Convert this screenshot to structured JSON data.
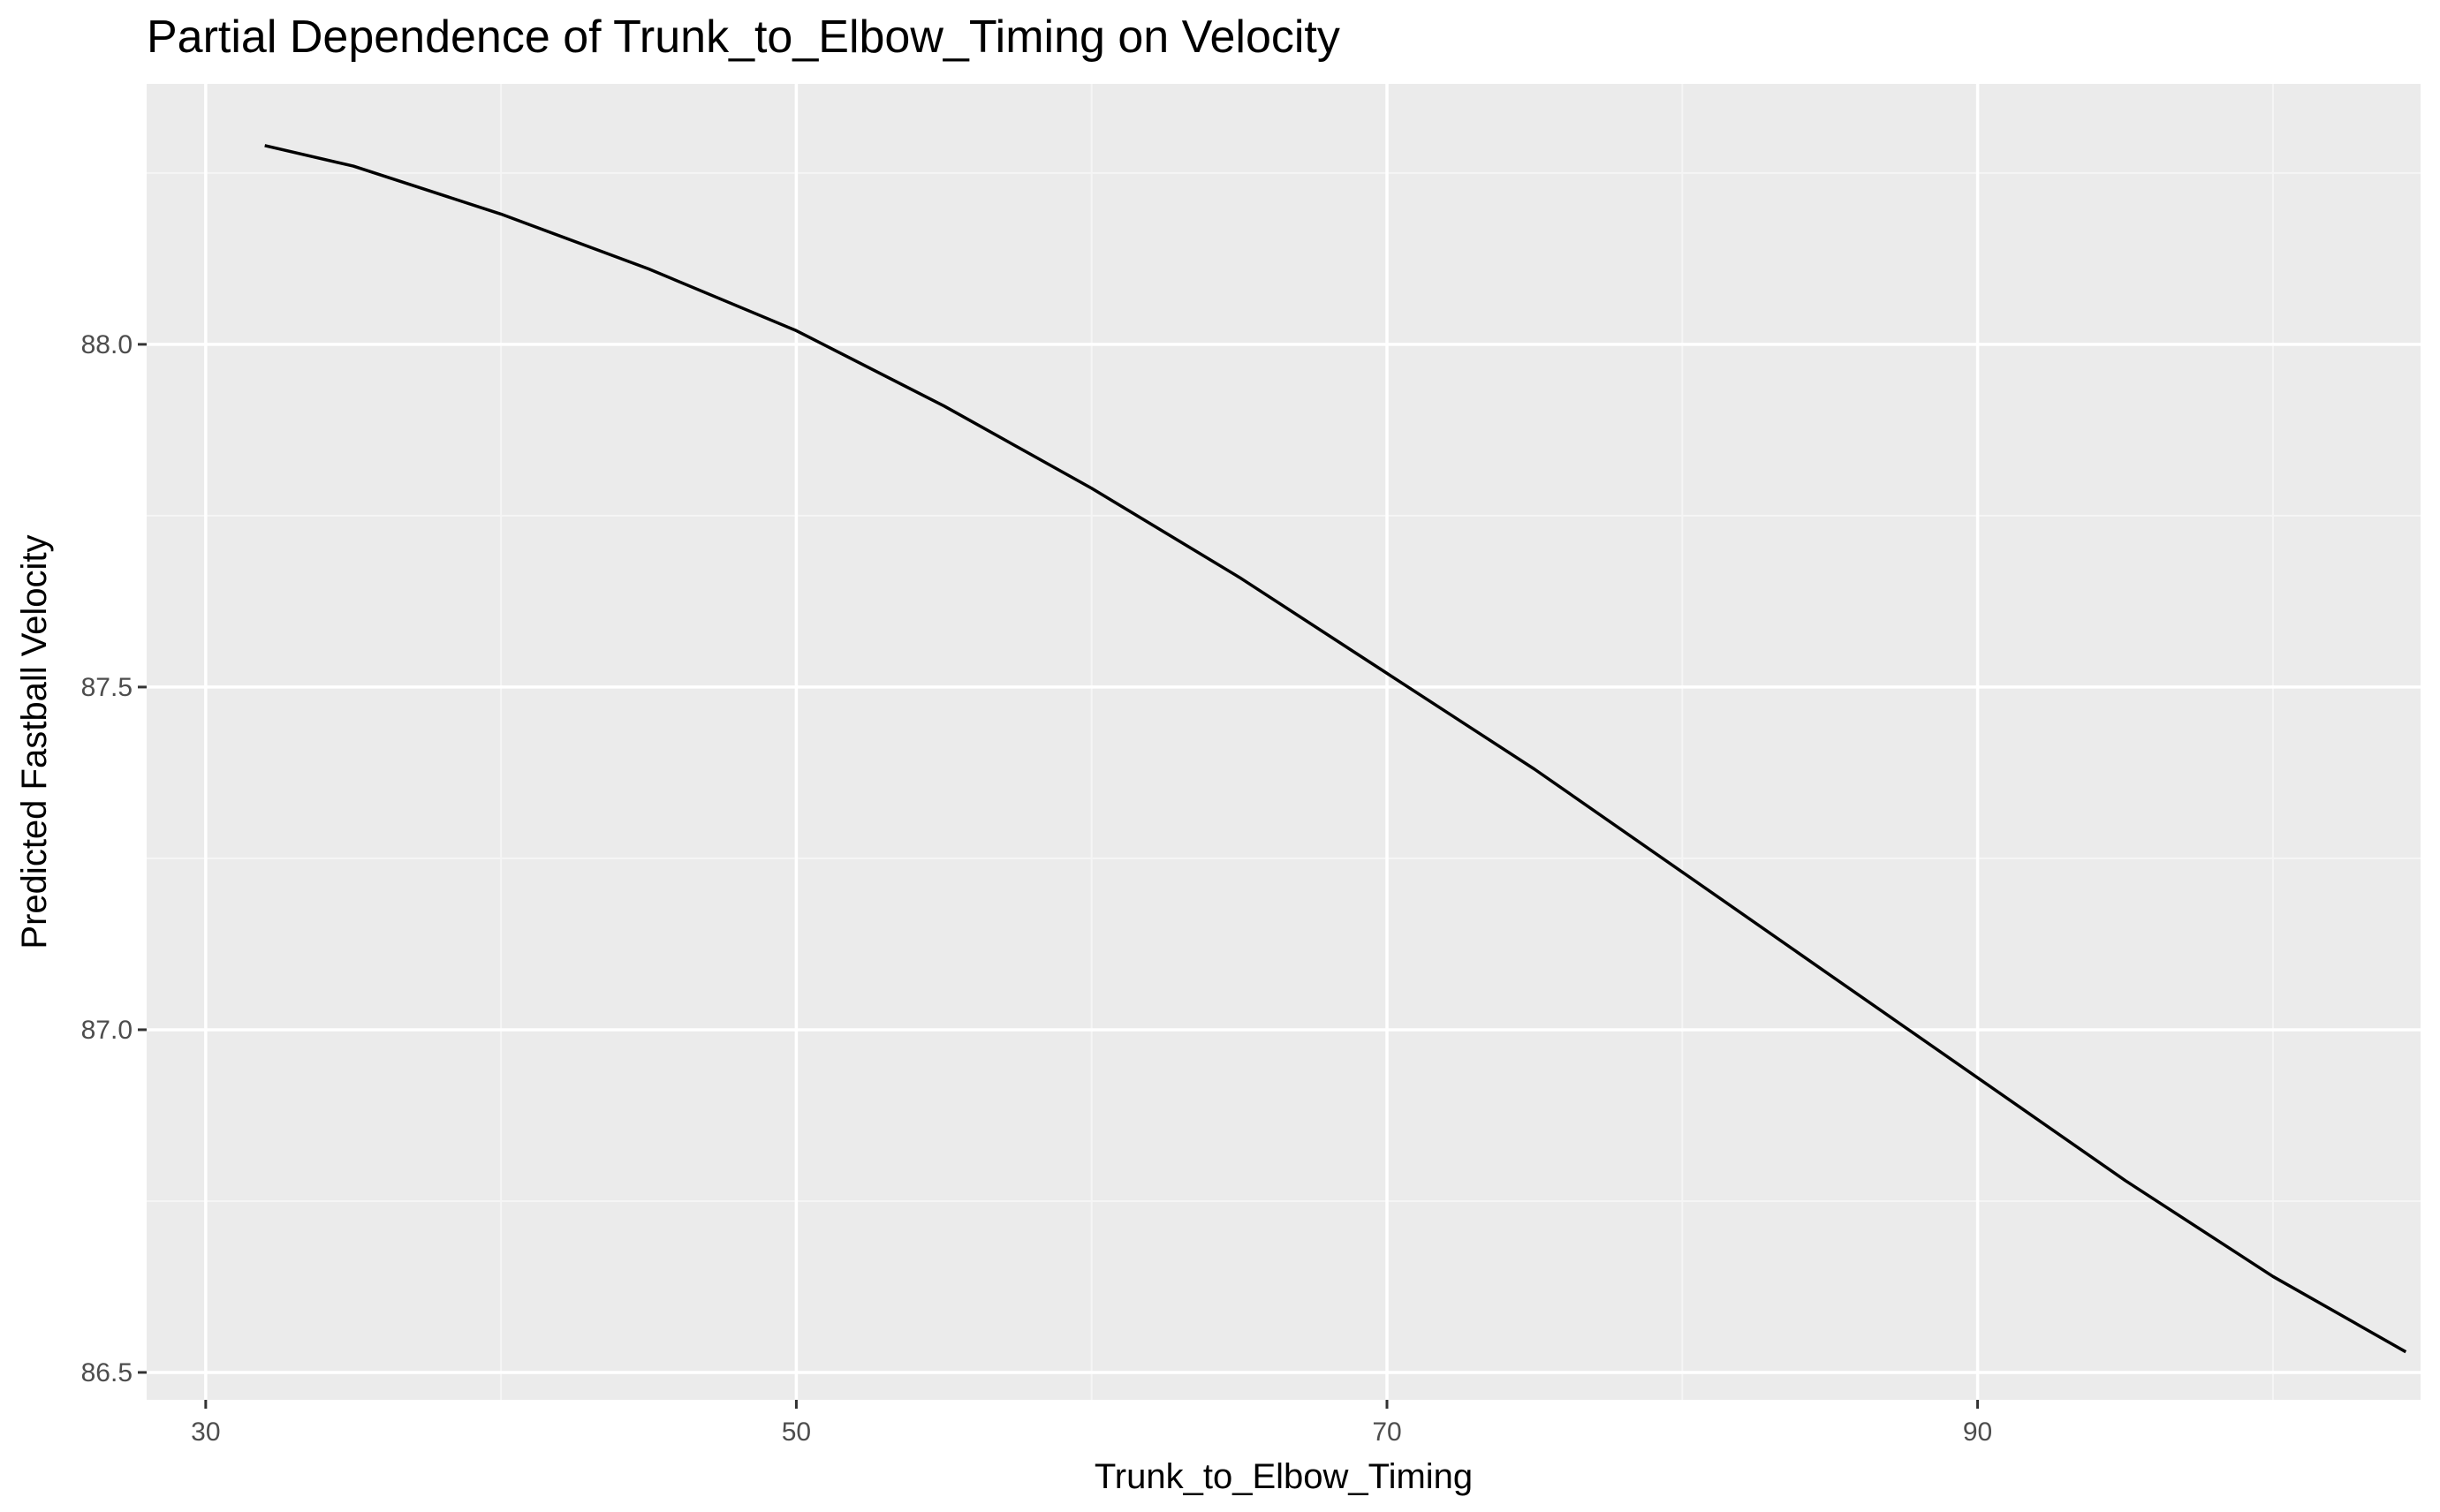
{
  "chart_data": {
    "type": "line",
    "title": "Partial Dependence of Trunk_to_Elbow_Timing on Velocity",
    "xlabel": "Trunk_to_Elbow_Timing",
    "ylabel": "Predicted Fastball Velocity",
    "xlim": [
      28,
      105
    ],
    "ylim": [
      86.46,
      88.38
    ],
    "x_ticks": [
      30,
      50,
      70,
      90
    ],
    "x_tick_labels": [
      "30",
      "50",
      "70",
      "90"
    ],
    "y_ticks": [
      86.5,
      87.0,
      87.5,
      88.0
    ],
    "y_tick_labels": [
      "86.5",
      "87.0",
      "87.5",
      "88.0"
    ],
    "grid": true,
    "legend": "none",
    "series": [
      {
        "color": "#000000",
        "x": [
          32,
          35,
          40,
          45,
          50,
          55,
          60,
          65,
          70,
          75,
          80,
          85,
          90,
          95,
          100,
          104.5
        ],
        "y": [
          88.29,
          88.26,
          88.19,
          88.11,
          88.02,
          87.91,
          87.79,
          87.66,
          87.52,
          87.38,
          87.23,
          87.08,
          86.93,
          86.78,
          86.64,
          86.53
        ]
      }
    ]
  },
  "colors": {
    "panel_background": "#ebebeb",
    "grid_major": "#ffffff",
    "grid_minor": "#f5f5f5",
    "line": "#000000",
    "tick_text": "#4d4d4d"
  }
}
